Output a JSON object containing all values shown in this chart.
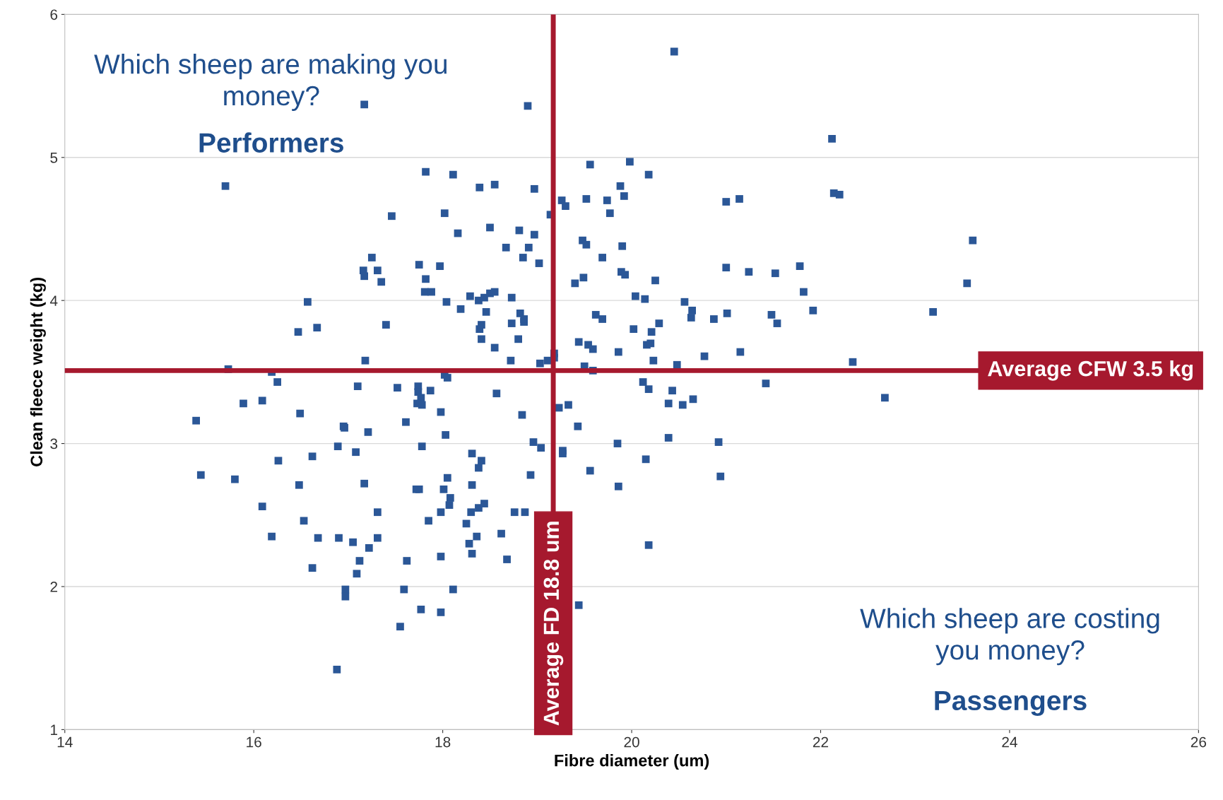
{
  "chart_data": {
    "type": "scatter",
    "xlabel": "Fibre diameter (um)",
    "ylabel": "Clean fleece weight (kg)",
    "xlim": [
      14,
      26
    ],
    "xticks": [
      14,
      16,
      18,
      20,
      22,
      24,
      26
    ],
    "ylim": [
      1,
      6
    ],
    "yticks": [
      1,
      2,
      3,
      4,
      5,
      6
    ],
    "grid": "y",
    "marker": "square",
    "annotations": [
      "Which sheep are making you\nmoney?",
      "Performers",
      "Which sheep are costing\nyou money?",
      "Passengers"
    ],
    "ref_lines": [
      {
        "axis": "x",
        "value": 19.17,
        "label": "Average FD 18.8 um",
        "color": "#a6192e"
      },
      {
        "axis": "y",
        "value": 3.51,
        "label": "Average CFW 3.5 kg",
        "color": "#a6192e"
      }
    ],
    "series": [
      {
        "color": "#2b5797",
        "x": [
          20.45,
          17.17,
          18.9,
          22.12,
          15.7,
          17.82,
          18.11,
          18.39,
          18.55,
          18.97,
          19.56,
          19.98,
          20.18,
          19.88,
          19.92,
          19.26,
          19.3,
          19.52,
          19.74,
          19.77,
          19.14,
          18.02,
          17.46,
          18.16,
          18.5,
          18.81,
          18.97,
          18.67,
          18.91,
          19.48,
          19.52,
          19.9,
          19.69,
          18.85,
          19.02,
          17.25,
          17.75,
          17.97,
          17.16,
          17.17,
          17.31,
          17.35,
          17.82,
          19.49,
          19.4,
          19.89,
          19.93,
          20.25,
          21.0,
          21.24,
          21.52,
          21.14,
          21.0,
          22.14,
          22.2,
          21.78,
          21.82,
          23.61,
          23.55,
          23.19,
          21.92,
          21.48,
          21.54,
          21.01,
          20.87,
          21.15,
          20.56,
          20.64,
          20.63,
          20.04,
          20.14,
          20.29,
          20.21,
          20.02,
          20.16,
          20.2,
          19.62,
          19.69,
          19.44,
          19.54,
          19.59,
          19.86,
          20.77,
          20.23,
          20.48,
          19.5,
          19.59,
          19.03,
          19.11,
          19.18,
          19.18,
          18.72,
          18.55,
          18.41,
          18.8,
          18.73,
          18.86,
          18.82,
          18.86,
          18.39,
          18.41,
          18.46,
          18.73,
          18.38,
          18.44,
          18.29,
          18.5,
          18.55,
          18.04,
          17.81,
          17.88,
          18.19,
          17.4,
          16.57,
          16.67,
          16.47,
          15.73,
          16.19,
          16.25,
          17.18,
          17.1,
          17.52,
          17.74,
          17.74,
          17.77,
          17.73,
          17.78,
          17.87,
          18.02,
          18.05,
          18.57,
          17.98,
          17.61,
          17.21,
          16.95,
          16.96,
          15.89,
          16.09,
          16.49,
          15.39,
          17.78,
          18.03,
          16.89,
          17.08,
          16.62,
          16.26,
          15.44,
          15.8,
          16.48,
          17.17,
          18.05,
          17.72,
          17.75,
          18.01,
          18.31,
          18.31,
          18.41,
          18.38,
          16.09,
          17.31,
          18.08,
          18.07,
          17.85,
          17.98,
          18.3,
          18.38,
          18.44,
          16.53,
          18.25,
          18.62,
          18.36,
          18.28,
          16.19,
          16.68,
          16.9,
          17.05,
          17.22,
          17.31,
          18.31,
          18.68,
          17.98,
          17.62,
          17.12,
          16.62,
          17.09,
          18.11,
          17.59,
          16.97,
          16.97,
          17.77,
          17.98,
          17.55,
          16.88,
          19.44,
          18.76,
          18.87,
          18.93,
          18.96,
          19.04,
          19.27,
          19.27,
          18.84,
          19.23,
          19.33,
          19.43,
          19.56,
          19.85,
          19.86,
          20.15,
          20.18,
          20.39,
          20.12,
          20.18,
          20.43,
          20.39,
          20.54,
          20.65,
          20.92,
          20.94,
          21.42,
          22.34,
          22.68
        ],
        "values": [
          5.74,
          5.37,
          5.36,
          5.13,
          4.8,
          4.9,
          4.88,
          4.79,
          4.81,
          4.78,
          4.95,
          4.97,
          4.88,
          4.8,
          4.73,
          4.7,
          4.66,
          4.71,
          4.7,
          4.61,
          4.6,
          4.61,
          4.59,
          4.47,
          4.51,
          4.49,
          4.46,
          4.37,
          4.37,
          4.42,
          4.39,
          4.38,
          4.3,
          4.3,
          4.26,
          4.3,
          4.25,
          4.24,
          4.21,
          4.17,
          4.21,
          4.13,
          4.15,
          4.16,
          4.12,
          4.2,
          4.18,
          4.14,
          4.23,
          4.2,
          4.19,
          4.71,
          4.69,
          4.75,
          4.74,
          4.24,
          4.06,
          4.42,
          4.12,
          3.92,
          3.93,
          3.9,
          3.84,
          3.91,
          3.87,
          3.64,
          3.99,
          3.93,
          3.88,
          4.03,
          4.01,
          3.84,
          3.78,
          3.8,
          3.69,
          3.7,
          3.9,
          3.87,
          3.71,
          3.69,
          3.66,
          3.64,
          3.61,
          3.58,
          3.55,
          3.54,
          3.51,
          3.56,
          3.58,
          3.63,
          3.6,
          3.58,
          3.67,
          3.73,
          3.73,
          3.84,
          3.85,
          3.91,
          3.87,
          3.8,
          3.83,
          3.92,
          4.02,
          4.0,
          4.02,
          4.03,
          4.05,
          4.06,
          3.99,
          4.06,
          4.06,
          3.94,
          3.83,
          3.99,
          3.81,
          3.78,
          3.52,
          3.5,
          3.43,
          3.58,
          3.4,
          3.39,
          3.4,
          3.36,
          3.32,
          3.28,
          3.27,
          3.37,
          3.48,
          3.46,
          3.35,
          3.22,
          3.15,
          3.08,
          3.12,
          3.11,
          3.28,
          3.3,
          3.21,
          3.16,
          2.98,
          3.06,
          2.98,
          2.94,
          2.91,
          2.88,
          2.78,
          2.75,
          2.71,
          2.72,
          2.76,
          2.68,
          2.68,
          2.68,
          2.71,
          2.93,
          2.88,
          2.83,
          2.56,
          2.52,
          2.62,
          2.57,
          2.46,
          2.52,
          2.52,
          2.55,
          2.58,
          2.46,
          2.44,
          2.37,
          2.35,
          2.3,
          2.35,
          2.34,
          2.34,
          2.31,
          2.27,
          2.34,
          2.23,
          2.19,
          2.21,
          2.18,
          2.18,
          2.13,
          2.09,
          1.98,
          1.98,
          1.98,
          1.93,
          1.84,
          1.82,
          1.72,
          1.42,
          1.87,
          2.52,
          2.52,
          2.78,
          3.01,
          2.97,
          2.95,
          2.93,
          3.2,
          3.25,
          3.27,
          3.12,
          2.81,
          3.0,
          2.7,
          2.89,
          2.29,
          3.04,
          3.43,
          3.38,
          3.37,
          3.28,
          3.27,
          3.31,
          3.01,
          2.77,
          3.42,
          3.57,
          3.32
        ]
      }
    ]
  }
}
